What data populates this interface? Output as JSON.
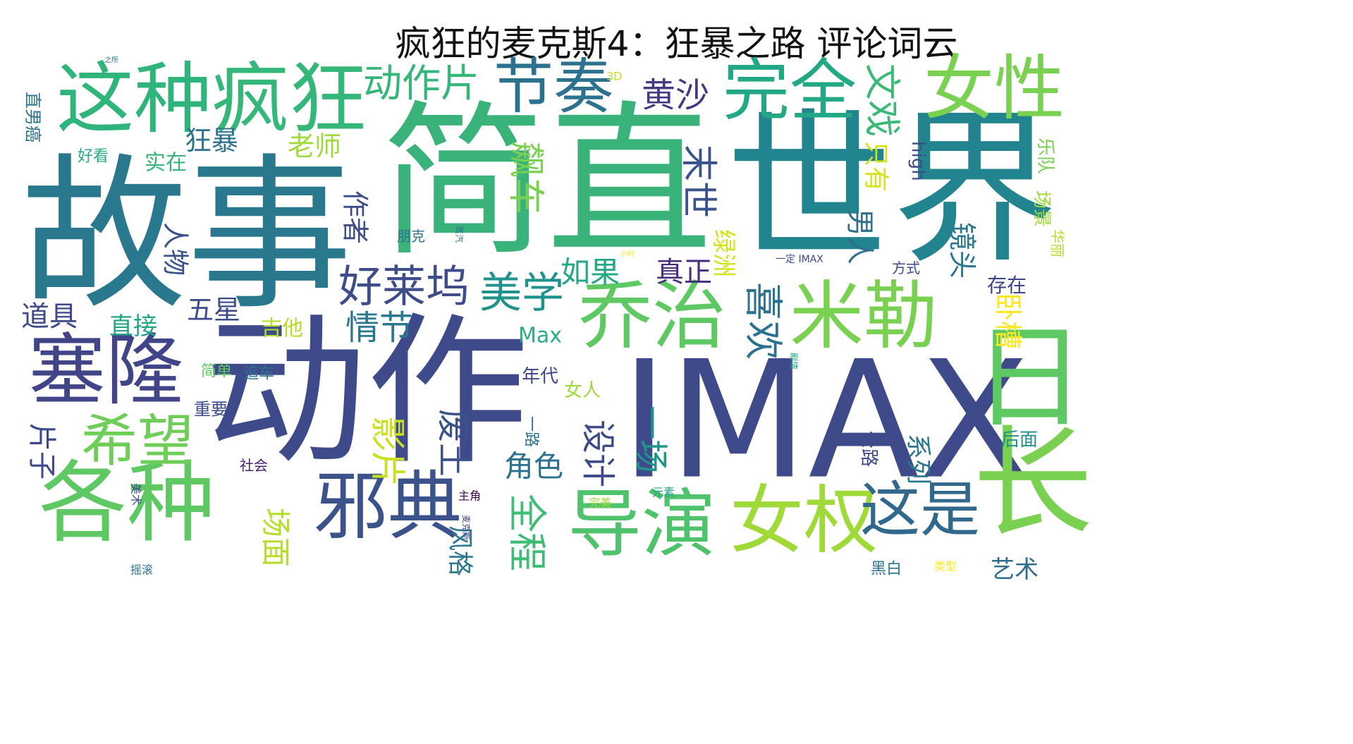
{
  "title": "疯狂的麦克斯4：狂暴之路 评论词云",
  "chart_data": {
    "type": "wordcloud",
    "title": "疯狂的麦克斯4：狂暴之路 评论词云",
    "colormap": "viridis",
    "background": "#ffffff",
    "words": [
      {
        "text": "故事",
        "weight": 100,
        "vertical": false,
        "color": "#2a788e"
      },
      {
        "text": "简直",
        "weight": 96,
        "vertical": false,
        "color": "#3ab37a"
      },
      {
        "text": "世界",
        "weight": 98,
        "vertical": false,
        "color": "#22848e"
      },
      {
        "text": "动作",
        "weight": 94,
        "vertical": false,
        "color": "#3f4a8a"
      },
      {
        "text": "IMAX",
        "weight": 92,
        "vertical": false,
        "color": "#3f4a8a"
      },
      {
        "text": "这种",
        "weight": 55,
        "vertical": false,
        "color": "#2fb47c"
      },
      {
        "text": "疯狂",
        "weight": 55,
        "vertical": false,
        "color": "#35b779"
      },
      {
        "text": "各种",
        "weight": 60,
        "vertical": false,
        "color": "#5ec962"
      },
      {
        "text": "塞隆",
        "weight": 50,
        "vertical": false,
        "color": "#414487"
      },
      {
        "text": "乔治",
        "weight": 52,
        "vertical": false,
        "color": "#5ec962"
      },
      {
        "text": "米勒",
        "weight": 52,
        "vertical": false,
        "color": "#7ad151"
      },
      {
        "text": "女性",
        "weight": 50,
        "vertical": false,
        "color": "#7ad151"
      },
      {
        "text": "完全",
        "weight": 45,
        "vertical": false,
        "color": "#22a884"
      },
      {
        "text": "节奏",
        "weight": 42,
        "vertical": false,
        "color": "#2c728e"
      },
      {
        "text": "邪典",
        "weight": 50,
        "vertical": false,
        "color": "#3b528b"
      },
      {
        "text": "导演",
        "weight": 48,
        "vertical": false,
        "color": "#4ec36b"
      },
      {
        "text": "女权",
        "weight": 48,
        "vertical": false,
        "color": "#a0da39"
      },
      {
        "text": "这是",
        "weight": 40,
        "vertical": false,
        "color": "#31688e"
      },
      {
        "text": "长",
        "weight": 70,
        "vertical": false,
        "color": "#7ad151"
      },
      {
        "text": "日",
        "weight": 65,
        "vertical": false,
        "color": "#5ec962"
      },
      {
        "text": "希望",
        "weight": 38,
        "vertical": false,
        "color": "#6ece58"
      },
      {
        "text": "好莱坞",
        "weight": 30,
        "vertical": false,
        "color": "#3e4c8a"
      },
      {
        "text": "美学",
        "weight": 28,
        "vertical": false,
        "color": "#20928c"
      },
      {
        "text": "动作片",
        "weight": 28,
        "vertical": false,
        "color": "#35b779"
      },
      {
        "text": "黄沙",
        "weight": 24,
        "vertical": false,
        "color": "#443983"
      },
      {
        "text": "喜欢",
        "weight": 26,
        "vertical": true,
        "color": "#2c728e"
      },
      {
        "text": "文戏",
        "weight": 24,
        "vertical": true,
        "color": "#3aba76"
      },
      {
        "text": "只有",
        "weight": 20,
        "vertical": true,
        "color": "#d8e219"
      },
      {
        "text": "末世",
        "weight": 26,
        "vertical": true,
        "color": "#3b528b"
      },
      {
        "text": "飙车",
        "weight": 24,
        "vertical": true,
        "color": "#7ad151"
      },
      {
        "text": "作者",
        "weight": 20,
        "vertical": true,
        "color": "#3e4c8a"
      },
      {
        "text": "人物",
        "weight": 20,
        "vertical": true,
        "color": "#3b528b"
      },
      {
        "text": "狂暴",
        "weight": 20,
        "vertical": false,
        "color": "#2c728e"
      },
      {
        "text": "老师",
        "weight": 20,
        "vertical": false,
        "color": "#9fda3a"
      },
      {
        "text": "实在",
        "weight": 16,
        "vertical": false,
        "color": "#35b779"
      },
      {
        "text": "好看",
        "weight": 12,
        "vertical": false,
        "color": "#22a884"
      },
      {
        "text": "情节",
        "weight": 24,
        "vertical": false,
        "color": "#2a788e"
      },
      {
        "text": "如果",
        "weight": 22,
        "vertical": false,
        "color": "#22a884"
      },
      {
        "text": "真正",
        "weight": 20,
        "vertical": false,
        "color": "#472d7b"
      },
      {
        "text": "绿洲",
        "weight": 18,
        "vertical": true,
        "color": "#d2e21b"
      },
      {
        "text": "男人",
        "weight": 20,
        "vertical": true,
        "color": "#2e6f8e"
      },
      {
        "text": "镜头",
        "weight": 20,
        "vertical": true,
        "color": "#2a788e"
      },
      {
        "text": "卧槽",
        "weight": 20,
        "vertical": true,
        "color": "#fde725"
      },
      {
        "text": "乐队",
        "weight": 14,
        "vertical": true,
        "color": "#7ad151"
      },
      {
        "text": "场景",
        "weight": 14,
        "vertical": true,
        "color": "#9fda3a"
      },
      {
        "text": "存在",
        "weight": 14,
        "vertical": false,
        "color": "#404387"
      },
      {
        "text": "华丽",
        "weight": 12,
        "vertical": true,
        "color": "#b5de2b"
      },
      {
        "text": "道具",
        "weight": 20,
        "vertical": false,
        "color": "#3e4989"
      },
      {
        "text": "直接",
        "weight": 18,
        "vertical": false,
        "color": "#20a486"
      },
      {
        "text": "五星",
        "weight": 18,
        "vertical": false,
        "color": "#3e4c8a"
      },
      {
        "text": "吉他",
        "weight": 14,
        "vertical": false,
        "color": "#b5de2b"
      },
      {
        "text": "Max",
        "weight": 16,
        "vertical": false,
        "color": "#29af7f"
      },
      {
        "text": "影片",
        "weight": 26,
        "vertical": true,
        "color": "#c8e020"
      },
      {
        "text": "废土",
        "weight": 24,
        "vertical": true,
        "color": "#3b528b"
      },
      {
        "text": "设计",
        "weight": 24,
        "vertical": true,
        "color": "#3e4989"
      },
      {
        "text": "一场",
        "weight": 24,
        "vertical": true,
        "color": "#1f958b"
      },
      {
        "text": "角色",
        "weight": 20,
        "vertical": false,
        "color": "#2c728e"
      },
      {
        "text": "全程",
        "weight": 30,
        "vertical": true,
        "color": "#3dbc74"
      },
      {
        "text": "场面",
        "weight": 20,
        "vertical": true,
        "color": "#b5de2b"
      },
      {
        "text": "风格",
        "weight": 18,
        "vertical": true,
        "color": "#2a788e"
      },
      {
        "text": "系列",
        "weight": 18,
        "vertical": true,
        "color": "#2a788e"
      },
      {
        "text": "后面",
        "weight": 14,
        "vertical": false,
        "color": "#21918c"
      },
      {
        "text": "公路",
        "weight": 14,
        "vertical": true,
        "color": "#3e4c8a"
      },
      {
        "text": "艺术",
        "weight": 14,
        "vertical": false,
        "color": "#2f6c8e"
      },
      {
        "text": "黑白",
        "weight": 10,
        "vertical": false,
        "color": "#2c728e"
      },
      {
        "text": "片子",
        "weight": 20,
        "vertical": true,
        "color": "#3e4989"
      },
      {
        "text": "女人",
        "weight": 14,
        "vertical": false,
        "color": "#a0da39"
      },
      {
        "text": "年代",
        "weight": 14,
        "vertical": false,
        "color": "#3f4788"
      },
      {
        "text": "一路",
        "weight": 10,
        "vertical": true,
        "color": "#2c728e"
      },
      {
        "text": "重要",
        "weight": 12,
        "vertical": false,
        "color": "#3e4c8a"
      },
      {
        "text": "简单",
        "weight": 12,
        "vertical": false,
        "color": "#5ec962"
      },
      {
        "text": "追车",
        "weight": 12,
        "vertical": false,
        "color": "#2c728e"
      },
      {
        "text": "方式",
        "weight": 10,
        "vertical": false,
        "color": "#3e4989"
      },
      {
        "text": "high",
        "weight": 12,
        "vertical": true,
        "color": "#3e4c8a"
      },
      {
        "text": "社会",
        "weight": 10,
        "vertical": false,
        "color": "#482173"
      },
      {
        "text": "元素",
        "weight": 8,
        "vertical": false,
        "color": "#20a486"
      },
      {
        "text": "主角",
        "weight": 8,
        "vertical": false,
        "color": "#440154"
      },
      {
        "text": "完美",
        "weight": 8,
        "vertical": false,
        "color": "#a0da39"
      },
      {
        "text": "朋克",
        "weight": 10,
        "vertical": false,
        "color": "#2c728e"
      },
      {
        "text": "3D",
        "weight": 8,
        "vertical": false,
        "color": "#bddf26"
      },
      {
        "text": "直男癌",
        "weight": 12,
        "vertical": true,
        "color": "#2c728e"
      },
      {
        "text": "美术",
        "weight": 8,
        "vertical": true,
        "color": "#3e4c8a"
      },
      {
        "text": "摇滚",
        "weight": 8,
        "vertical": false,
        "color": "#2c728e"
      },
      {
        "text": "类型",
        "weight": 8,
        "vertical": false,
        "color": "#fde725"
      },
      {
        "text": "一定 IMAX",
        "weight": 7,
        "vertical": false,
        "color": "#3e4989"
      },
      {
        "text": "之所",
        "weight": 5,
        "vertical": false,
        "color": "#2c728e"
      },
      {
        "text": "剧情",
        "weight": 5,
        "vertical": true,
        "color": "#20a486"
      },
      {
        "text": "麦克斯",
        "weight": 5,
        "vertical": true,
        "color": "#3e4989"
      },
      {
        "text": "蒸汽",
        "weight": 5,
        "vertical": true,
        "color": "#2c728e"
      },
      {
        "text": "小时",
        "weight": 5,
        "vertical": false,
        "color": "#fde725"
      }
    ]
  }
}
